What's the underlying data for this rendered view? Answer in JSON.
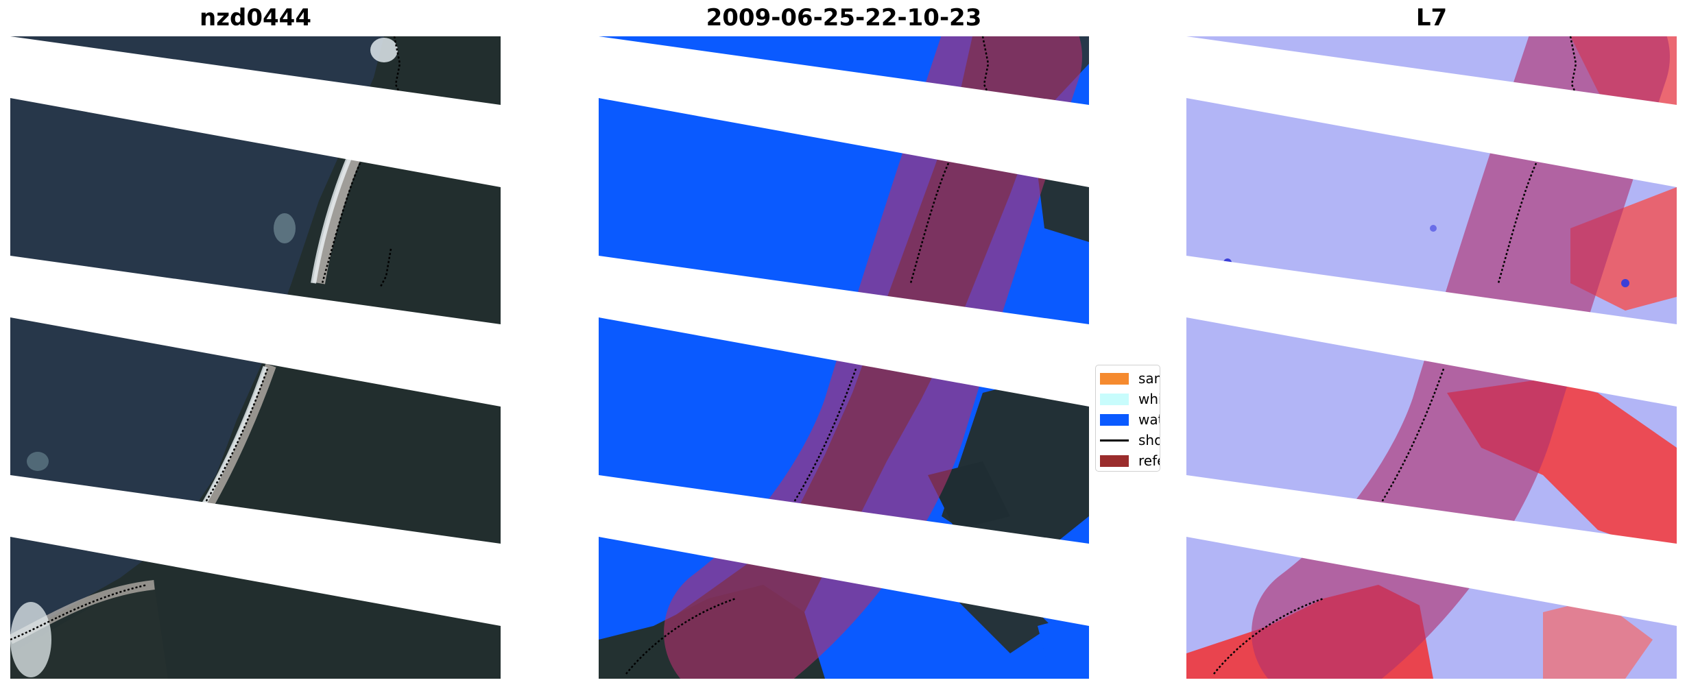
{
  "panels": [
    {
      "title": "nzd0444"
    },
    {
      "title": "2009-06-25-22-10-23"
    },
    {
      "title": "L7"
    }
  ],
  "legend": {
    "items": [
      {
        "label": "sand",
        "color": "#f58a2f",
        "kind": "patch"
      },
      {
        "label": "whitewater",
        "color": "#c8fcfc",
        "kind": "patch"
      },
      {
        "label": "water",
        "color": "#0a5aff",
        "kind": "patch"
      },
      {
        "label": "shoreline",
        "color": "#000000",
        "kind": "line"
      },
      {
        "label": "reference",
        "color": "#9a2c2c",
        "kind": "patch"
      }
    ]
  },
  "colors": {
    "land": "#263443",
    "land_dark": "#1f2b2a",
    "water_class": "#0a5aff",
    "buffer": "#b0306e",
    "index_negative": "#a8abf5",
    "index_positive": "#f32a2a"
  }
}
